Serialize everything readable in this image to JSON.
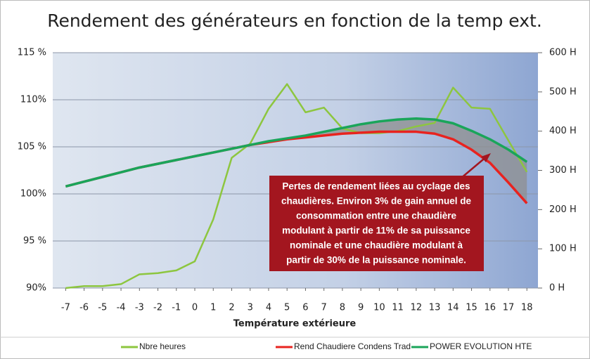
{
  "chart_data": {
    "type": "line",
    "title": "Rendement des générateurs en fonction de la temp ext.",
    "x_label": "Température extérieure",
    "x": [
      -7,
      -6,
      -5,
      -4,
      -3,
      -2,
      -1,
      0,
      1,
      2,
      3,
      4,
      5,
      6,
      7,
      8,
      9,
      10,
      11,
      12,
      13,
      14,
      15,
      16,
      17,
      18
    ],
    "xlim": [
      -7.7,
      18.6
    ],
    "xticks": [
      -7,
      -6,
      -5,
      -4,
      -3,
      -2,
      -1,
      0,
      1,
      2,
      3,
      4,
      5,
      6,
      7,
      8,
      9,
      10,
      11,
      12,
      13,
      14,
      15,
      16,
      17,
      18
    ],
    "ylim": [
      90,
      115
    ],
    "yticks": [
      {
        "value": 90,
        "label": "90%"
      },
      {
        "value": 95,
        "label": "95 %"
      },
      {
        "value": 100,
        "label": "100%"
      },
      {
        "value": 105,
        "label": "105 %"
      },
      {
        "value": 110,
        "label": "110%"
      },
      {
        "value": 115,
        "label": "115 %"
      }
    ],
    "y2lim": [
      0,
      600
    ],
    "y2ticks": [
      {
        "value": 0,
        "label": "0 H"
      },
      {
        "value": 100,
        "label": "100 H"
      },
      {
        "value": 200,
        "label": "200 H"
      },
      {
        "value": 300,
        "label": "300 H"
      },
      {
        "value": 400,
        "label": "400 H"
      },
      {
        "value": 500,
        "label": "500 H"
      },
      {
        "value": 600,
        "label": "600 H"
      }
    ],
    "grid": true,
    "series": [
      {
        "name": "Nbre heures",
        "color": "#8dc63f",
        "axis": "y2",
        "values": [
          0,
          5,
          5,
          10,
          35,
          38,
          45,
          68,
          175,
          332,
          368,
          457,
          520,
          448,
          460,
          407,
          395,
          395,
          400,
          412,
          421,
          511,
          460,
          457,
          376,
          296
        ]
      },
      {
        "name": "Rend Chaudiere Condens Trad",
        "color": "#e8231f",
        "values": [
          100.8,
          101.3,
          101.8,
          102.3,
          102.8,
          103.2,
          103.6,
          104.0,
          104.4,
          104.8,
          105.2,
          105.5,
          105.8,
          106.0,
          106.2,
          106.4,
          106.5,
          106.6,
          106.6,
          106.6,
          106.4,
          105.8,
          104.7,
          103.3,
          101.2,
          99.0
        ]
      },
      {
        "name": "POWER EVOLUTION HTE",
        "color": "#1aa55a",
        "values": [
          100.8,
          101.3,
          101.8,
          102.3,
          102.8,
          103.2,
          103.6,
          104.0,
          104.4,
          104.8,
          105.2,
          105.6,
          105.9,
          106.2,
          106.6,
          107.0,
          107.4,
          107.7,
          107.9,
          108.0,
          107.9,
          107.5,
          106.7,
          105.8,
          104.7,
          103.4
        ]
      }
    ],
    "annotation": [
      "Pertes de rendement liées au cyclage des",
      "chaudières. Environ 3% de gain annuel de",
      "consommation entre une chaudière",
      "modulant à partir de 11% de sa puissance",
      "nominale et une chaudière modulant à",
      "partir de 30% de la puissance nominale."
    ]
  }
}
